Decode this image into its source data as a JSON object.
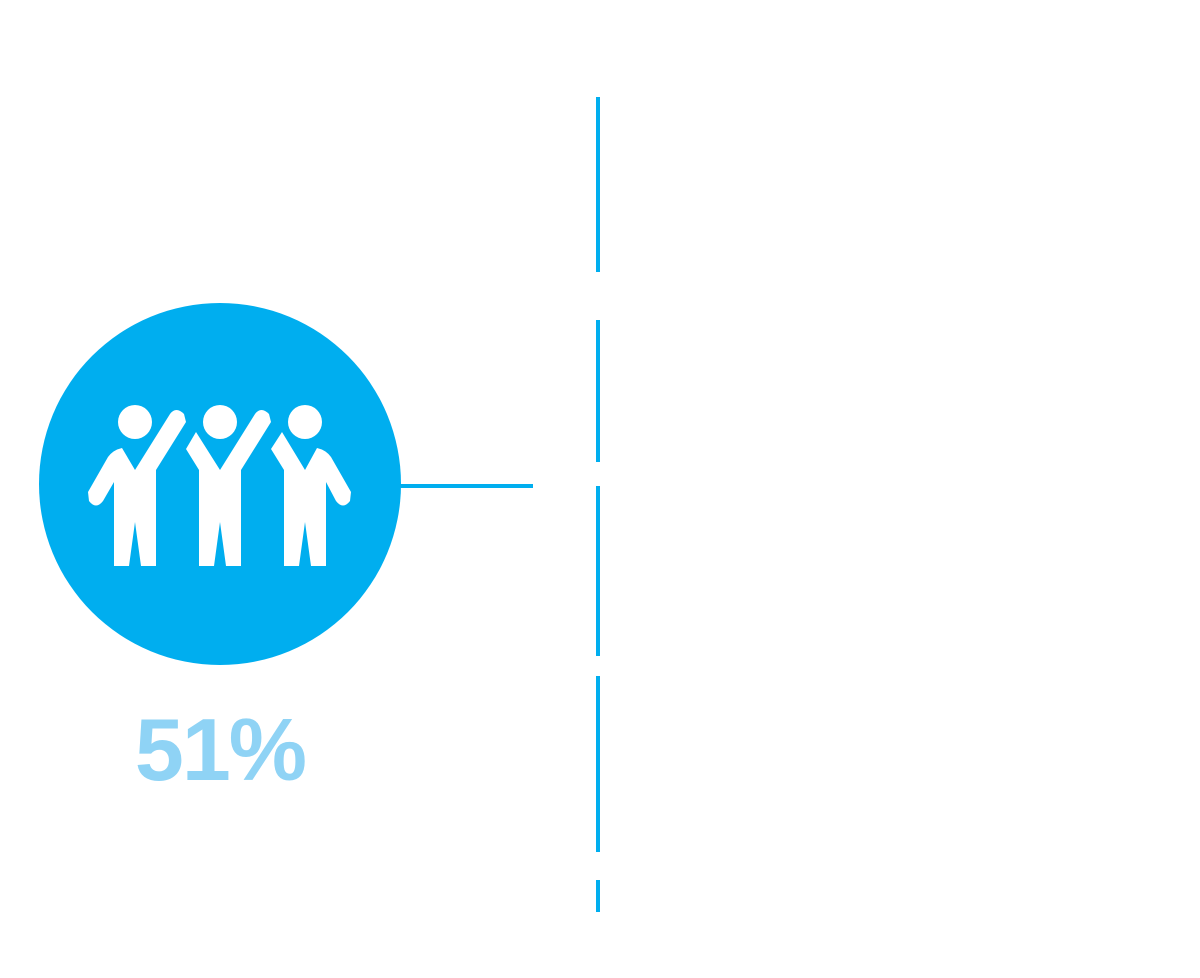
{
  "stat": {
    "value": "51%",
    "icon": "people-group-icon"
  },
  "colors": {
    "accent": "#00aeef",
    "value_text": "#8fd3f5",
    "icon_fill": "#ffffff",
    "background": "#ffffff"
  }
}
